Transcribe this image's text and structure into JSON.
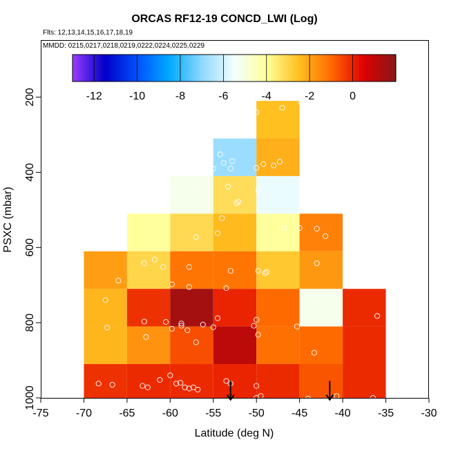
{
  "chart_data": {
    "type": "heatmap",
    "title": "ORCAS RF12-19 CONCD_LWI (Log)",
    "flights_label": "Flts: 12,13,14,15,16,17,18,19",
    "dates_label": "MMDD: 0215,0217,0218,0219,0222,0224,0225,0229",
    "xlabel": "Latitude (deg N)",
    "ylabel": "PSXC (mbar)",
    "xlim": [
      -75,
      -30
    ],
    "ylim": [
      1000,
      50
    ],
    "x_ticks": [
      -75,
      -70,
      -65,
      -60,
      -55,
      -50,
      -45,
      -40,
      -35,
      -30
    ],
    "y_ticks": [
      200,
      400,
      600,
      800,
      1000
    ],
    "colorbar": {
      "range": [
        -13,
        2
      ],
      "ticks": [
        -12,
        -10,
        -8,
        -6,
        -4,
        -2,
        0
      ],
      "colors": [
        "#9a3cff",
        "#0000c8",
        "#0050ff",
        "#00aaff",
        "#8ed8ff",
        "#f2ffff",
        "#ffff9c",
        "#ffc020",
        "#ff6a00",
        "#e00000",
        "#861818"
      ]
    },
    "cells": [
      {
        "x0": -50,
        "x1": -45,
        "p0": 210,
        "p1": 310,
        "value": -2.5
      },
      {
        "x0": -55,
        "x1": -50,
        "p0": 310,
        "p1": 410,
        "value": -6.8
      },
      {
        "x0": -50,
        "x1": -45,
        "p0": 310,
        "p1": 410,
        "value": -2.2
      },
      {
        "x0": -60,
        "x1": -55,
        "p0": 410,
        "p1": 510,
        "value": -5.2
      },
      {
        "x0": -55,
        "x1": -50,
        "p0": 410,
        "p1": 510,
        "value": -3.2
      },
      {
        "x0": -50,
        "x1": -45,
        "p0": 410,
        "p1": 510,
        "value": -5.6
      },
      {
        "x0": -65,
        "x1": -60,
        "p0": 510,
        "p1": 610,
        "value": -4.0
      },
      {
        "x0": -60,
        "x1": -55,
        "p0": 510,
        "p1": 610,
        "value": -3.1
      },
      {
        "x0": -55,
        "x1": -50,
        "p0": 510,
        "p1": 610,
        "value": -2.4
      },
      {
        "x0": -50,
        "x1": -45,
        "p0": 510,
        "p1": 610,
        "value": -4.0
      },
      {
        "x0": -45,
        "x1": -40,
        "p0": 510,
        "p1": 610,
        "value": -1.4
      },
      {
        "x0": -70,
        "x1": -65,
        "p0": 610,
        "p1": 710,
        "value": -1.9
      },
      {
        "x0": -65,
        "x1": -60,
        "p0": 610,
        "p1": 710,
        "value": -3.0
      },
      {
        "x0": -60,
        "x1": -55,
        "p0": 610,
        "p1": 710,
        "value": -1.2
      },
      {
        "x0": -55,
        "x1": -50,
        "p0": 610,
        "p1": 710,
        "value": -1.2
      },
      {
        "x0": -50,
        "x1": -45,
        "p0": 610,
        "p1": 710,
        "value": -2.7
      },
      {
        "x0": -45,
        "x1": -40,
        "p0": 610,
        "p1": 710,
        "value": -1.8
      },
      {
        "x0": -70,
        "x1": -65,
        "p0": 710,
        "p1": 810,
        "value": -2.3
      },
      {
        "x0": -65,
        "x1": -60,
        "p0": 710,
        "p1": 810,
        "value": -0.2
      },
      {
        "x0": -60,
        "x1": -55,
        "p0": 710,
        "p1": 810,
        "value": 1.5
      },
      {
        "x0": -55,
        "x1": -50,
        "p0": 710,
        "p1": 810,
        "value": 0.0
      },
      {
        "x0": -50,
        "x1": -45,
        "p0": 710,
        "p1": 810,
        "value": -1.0
      },
      {
        "x0": -45,
        "x1": -40,
        "p0": 710,
        "p1": 810,
        "value": -5.2
      },
      {
        "x0": -40,
        "x1": -35,
        "p0": 710,
        "p1": 810,
        "value": -0.1
      },
      {
        "x0": -70,
        "x1": -65,
        "p0": 810,
        "p1": 910,
        "value": -2.3
      },
      {
        "x0": -65,
        "x1": -60,
        "p0": 810,
        "p1": 910,
        "value": -1.7
      },
      {
        "x0": -60,
        "x1": -55,
        "p0": 810,
        "p1": 910,
        "value": -0.6
      },
      {
        "x0": -55,
        "x1": -50,
        "p0": 810,
        "p1": 910,
        "value": 1.1
      },
      {
        "x0": -50,
        "x1": -45,
        "p0": 810,
        "p1": 910,
        "value": -1.1
      },
      {
        "x0": -45,
        "x1": -40,
        "p0": 810,
        "p1": 910,
        "value": -1.0
      },
      {
        "x0": -40,
        "x1": -35,
        "p0": 810,
        "p1": 910,
        "value": -0.1
      },
      {
        "x0": -70,
        "x1": -65,
        "p0": 910,
        "p1": 1010,
        "value": -0.2
      },
      {
        "x0": -65,
        "x1": -60,
        "p0": 910,
        "p1": 1010,
        "value": -0.1
      },
      {
        "x0": -60,
        "x1": -55,
        "p0": 910,
        "p1": 1010,
        "value": -0.1
      },
      {
        "x0": -55,
        "x1": -50,
        "p0": 910,
        "p1": 1010,
        "value": 0.0
      },
      {
        "x0": -50,
        "x1": -45,
        "p0": 910,
        "p1": 1010,
        "value": -0.1
      },
      {
        "x0": -45,
        "x1": -40,
        "p0": 910,
        "p1": 1010,
        "value": -0.7
      },
      {
        "x0": -40,
        "x1": -35,
        "p0": 910,
        "p1": 1010,
        "value": -0.1
      }
    ],
    "points": [
      [
        -50.0,
        240
      ],
      [
        -47.0,
        228
      ],
      [
        -44.8,
        215
      ],
      [
        -54.2,
        352
      ],
      [
        -53.8,
        375
      ],
      [
        -52.8,
        370
      ],
      [
        -53.0,
        390
      ],
      [
        -55.0,
        390
      ],
      [
        -50.0,
        388
      ],
      [
        -49.2,
        378
      ],
      [
        -48.0,
        382
      ],
      [
        -47.3,
        372
      ],
      [
        -59.5,
        448
      ],
      [
        -57.0,
        448
      ],
      [
        -53.3,
        438
      ],
      [
        -52.3,
        482
      ],
      [
        -52.1,
        478
      ],
      [
        -49.8,
        448
      ],
      [
        -54.0,
        522
      ],
      [
        -54.5,
        562
      ],
      [
        -57.0,
        572
      ],
      [
        -46.8,
        548
      ],
      [
        -45.0,
        548
      ],
      [
        -43.0,
        550
      ],
      [
        -42.0,
        570
      ],
      [
        -61.8,
        632
      ],
      [
        -63.0,
        642
      ],
      [
        -60.8,
        652
      ],
      [
        -57.8,
        652
      ],
      [
        -53.0,
        662
      ],
      [
        -49.8,
        662
      ],
      [
        -48.8,
        665
      ],
      [
        -49.0,
        668
      ],
      [
        -43.0,
        642
      ],
      [
        -66.0,
        688
      ],
      [
        -59.8,
        698
      ],
      [
        -57.8,
        705
      ],
      [
        -53.5,
        708
      ],
      [
        -67.5,
        740
      ],
      [
        -43.0,
        752
      ],
      [
        -40.8,
        752
      ],
      [
        -36.0,
        782
      ],
      [
        -67.3,
        813
      ],
      [
        -63.0,
        797
      ],
      [
        -60.5,
        798
      ],
      [
        -59.8,
        816
      ],
      [
        -58.7,
        802
      ],
      [
        -58.7,
        808
      ],
      [
        -58.0,
        820
      ],
      [
        -56.2,
        805
      ],
      [
        -55.0,
        812
      ],
      [
        -54.5,
        788
      ],
      [
        -50.0,
        792
      ],
      [
        -49.8,
        832
      ],
      [
        -50.3,
        808
      ],
      [
        -45.3,
        810
      ],
      [
        -62.8,
        838
      ],
      [
        -57.0,
        852
      ],
      [
        -43.3,
        880
      ],
      [
        -68.3,
        962
      ],
      [
        -66.7,
        965
      ],
      [
        -63.2,
        968
      ],
      [
        -62.6,
        972
      ],
      [
        -61.2,
        952
      ],
      [
        -60.0,
        940
      ],
      [
        -59.3,
        962
      ],
      [
        -58.8,
        960
      ],
      [
        -58.3,
        972
      ],
      [
        -57.8,
        975
      ],
      [
        -57.3,
        972
      ],
      [
        -56.8,
        978
      ],
      [
        -53.5,
        955
      ],
      [
        -53.0,
        962
      ],
      [
        -50.0,
        968
      ],
      [
        -50.0,
        1000
      ],
      [
        -49.5,
        995
      ],
      [
        -44.0,
        1002
      ],
      [
        -40.7,
        995
      ],
      [
        -36.5,
        1000
      ]
    ],
    "arrows": [
      {
        "lat": -53.0,
        "p_top": 955,
        "p_bottom": 1005
      },
      {
        "lat": -41.5,
        "p_top": 955,
        "p_bottom": 1005
      }
    ]
  }
}
